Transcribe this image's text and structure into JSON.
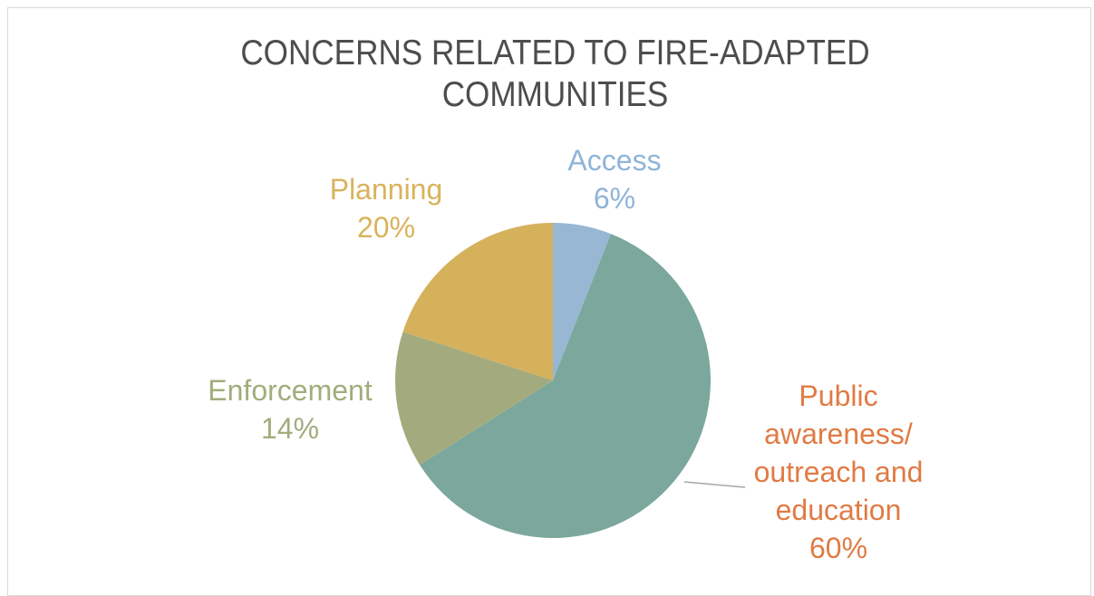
{
  "chart_data": {
    "type": "pie",
    "title": "CONCERNS RELATED TO FIRE-ADAPTED COMMUNITIES",
    "slices": [
      {
        "name": "Access",
        "value": 6,
        "label": "6%",
        "color": "#97b7d3"
      },
      {
        "name": "Public awareness/ outreach and education",
        "value": 60,
        "label": "60%",
        "color": "#7ba79c"
      },
      {
        "name": "Enforcement",
        "value": 14,
        "label": "14%",
        "color": "#a3ab7e"
      },
      {
        "name": "Planning",
        "value": 20,
        "label": "20%",
        "color": "#d6b15c"
      }
    ],
    "label_colors": {
      "Access": "#8fb4d8",
      "Public awareness/ outreach and education": "#e07b44",
      "Enforcement": "#a0ad7c",
      "Planning": "#d9b35c"
    },
    "start_angle": "12 o'clock, clockwise",
    "legend": "none (labels on chart)"
  }
}
